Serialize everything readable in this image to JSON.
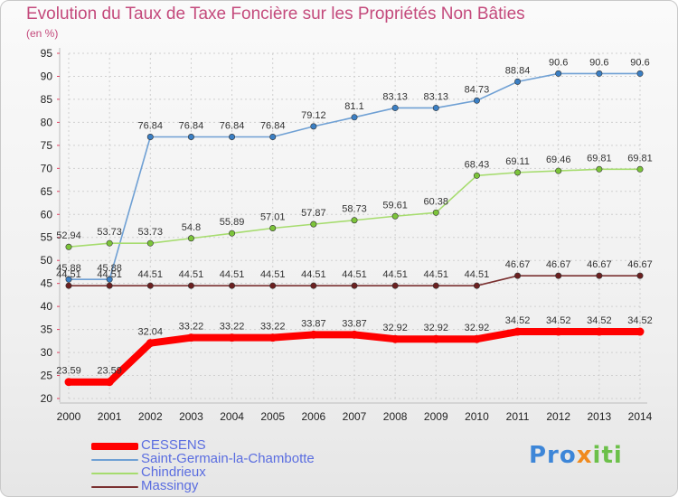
{
  "colors": {
    "title": "#c44a7c",
    "legend_text": "#5a6de0",
    "grid": "#d0d0d0",
    "axis": "#bcbcbc"
  },
  "chart_data": {
    "type": "line",
    "title": "Evolution du Taux de Taxe Foncière sur les Propriétés Non Bâties",
    "ylabel": "(en %)",
    "xlabel": "",
    "ylim": [
      20,
      95
    ],
    "yticks": [
      20,
      25,
      30,
      35,
      40,
      45,
      50,
      55,
      60,
      65,
      70,
      75,
      80,
      85,
      90,
      95
    ],
    "grid": true,
    "categories": [
      "2000",
      "2001",
      "2002",
      "2003",
      "2004",
      "2005",
      "2006",
      "2007",
      "2008",
      "2009",
      "2010",
      "2011",
      "2012",
      "2013",
      "2014"
    ],
    "series": [
      {
        "name": "CESSENS",
        "color": "#ff0000",
        "values": [
          23.59,
          23.59,
          32.04,
          33.22,
          33.22,
          33.22,
          33.87,
          33.87,
          32.92,
          32.92,
          32.92,
          34.52,
          34.52,
          34.52,
          34.52
        ]
      },
      {
        "name": "Saint-Germain-la-Chambotte",
        "color": "#6fa0d4",
        "marker": "#3b7fc4",
        "values": [
          45.88,
          45.88,
          76.84,
          76.84,
          76.84,
          76.84,
          79.12,
          81.1,
          83.13,
          83.13,
          84.73,
          88.84,
          90.6,
          90.6,
          90.6
        ]
      },
      {
        "name": "Chindrieux",
        "color": "#a6dc6e",
        "marker": "#7cc43a",
        "values": [
          52.94,
          53.73,
          53.73,
          54.8,
          55.89,
          57.01,
          57.87,
          58.73,
          59.61,
          60.38,
          68.43,
          69.11,
          69.46,
          69.81,
          69.81
        ]
      },
      {
        "name": "Massingy",
        "color": "#7a3030",
        "marker": "#6b2020",
        "values": [
          44.51,
          44.51,
          44.51,
          44.51,
          44.51,
          44.51,
          44.51,
          44.51,
          44.51,
          44.51,
          44.51,
          46.67,
          46.67,
          46.67,
          46.67
        ]
      }
    ],
    "labels": [
      [
        "23.59",
        "23.59",
        "32.04",
        "33.22",
        "33.22",
        "33.22",
        "33.87",
        "33.87",
        "32.92",
        "32.92",
        "32.92",
        "34.52",
        "34.52",
        "34.52",
        "34.52"
      ],
      [
        "45.88",
        "45.88",
        "76.84",
        "76.84",
        "76.84",
        "76.84",
        "79.12",
        "81.1",
        "83.13",
        "83.13",
        "84.73",
        "88.84",
        "90.6",
        "90.6",
        "90.6"
      ],
      [
        "52.94",
        "53.73",
        "53.73",
        "54.8",
        "55.89",
        "57.01",
        "57.87",
        "58.73",
        "59.61",
        "60.38",
        "68.43",
        "69.11",
        "69.46",
        "69.81",
        "69.81"
      ],
      [
        "44.51",
        "44.51",
        "44.51",
        "44.51",
        "44.51",
        "44.51",
        "44.51",
        "44.51",
        "44.51",
        "44.51",
        "44.51",
        "46.67",
        "46.67",
        "46.67",
        "46.67"
      ]
    ],
    "legend": "bottom-left"
  },
  "logo": {
    "part1": "Pro",
    "part2": "x",
    "part3": "iti"
  }
}
